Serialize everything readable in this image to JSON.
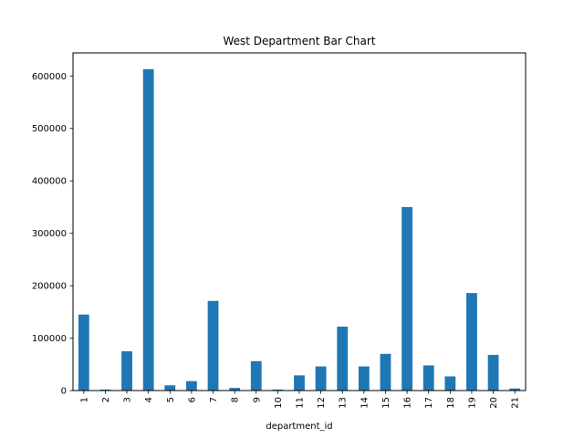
{
  "chart_data": {
    "type": "bar",
    "title": "West Department Bar Chart",
    "xlabel": "department_id",
    "ylabel": "",
    "categories": [
      "1",
      "2",
      "3",
      "4",
      "5",
      "6",
      "7",
      "8",
      "9",
      "10",
      "11",
      "12",
      "13",
      "14",
      "15",
      "16",
      "17",
      "18",
      "19",
      "20",
      "21"
    ],
    "values": [
      145000,
      2000,
      75000,
      613000,
      10000,
      18000,
      171000,
      5000,
      56000,
      2000,
      29000,
      46000,
      122000,
      46000,
      70000,
      350000,
      48000,
      27000,
      186000,
      68000,
      4000
    ],
    "ylim": [
      0,
      644000
    ],
    "yticks": [
      0,
      100000,
      200000,
      300000,
      400000,
      500000,
      600000
    ],
    "yticklabels": [
      "0",
      "100000",
      "200000",
      "300000",
      "400000",
      "500000",
      "600000"
    ],
    "grid": false,
    "bar_color": "#1f77b4"
  }
}
